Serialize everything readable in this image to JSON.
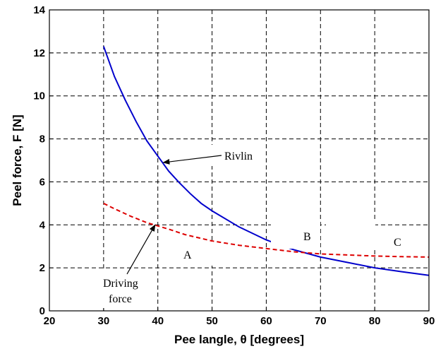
{
  "chart_data": {
    "type": "line",
    "xlabel": "Pee langle, θ [degrees]",
    "ylabel": "Peel force, F [N]",
    "xlim": [
      20,
      90
    ],
    "ylim": [
      0,
      14
    ],
    "xticks": [
      20,
      30,
      40,
      50,
      60,
      70,
      80,
      90
    ],
    "yticks": [
      0,
      2,
      4,
      6,
      8,
      10,
      12,
      14
    ],
    "grid": true,
    "series": [
      {
        "name": "Rivlin",
        "color": "#0000cc",
        "style": "solid",
        "x": [
          30,
          32,
          34,
          36,
          38,
          40,
          42,
          44,
          46,
          48,
          50,
          55,
          60,
          65,
          70,
          75,
          80,
          85,
          90
        ],
        "y": [
          12.3,
          10.9,
          9.8,
          8.8,
          7.9,
          7.2,
          6.5,
          5.95,
          5.45,
          5.0,
          4.65,
          3.9,
          3.3,
          2.85,
          2.5,
          2.25,
          2.0,
          1.82,
          1.65
        ]
      },
      {
        "name": "Driving force",
        "color": "#dd0000",
        "style": "dashed",
        "x": [
          30,
          32,
          35,
          38,
          40,
          42,
          45,
          50,
          55,
          60,
          65,
          70,
          75,
          80,
          85,
          90
        ],
        "y": [
          5.0,
          4.75,
          4.4,
          4.1,
          3.95,
          3.8,
          3.55,
          3.25,
          3.05,
          2.9,
          2.75,
          2.65,
          2.6,
          2.55,
          2.52,
          2.5
        ]
      }
    ],
    "annotations": [
      {
        "text": "Rivlin",
        "arrow_to": [
          41,
          6.9
        ]
      },
      {
        "text": "Driving force",
        "arrow_to": [
          39.5,
          4.0
        ]
      },
      {
        "text": "A"
      },
      {
        "text": "B"
      },
      {
        "text": "C"
      }
    ]
  }
}
